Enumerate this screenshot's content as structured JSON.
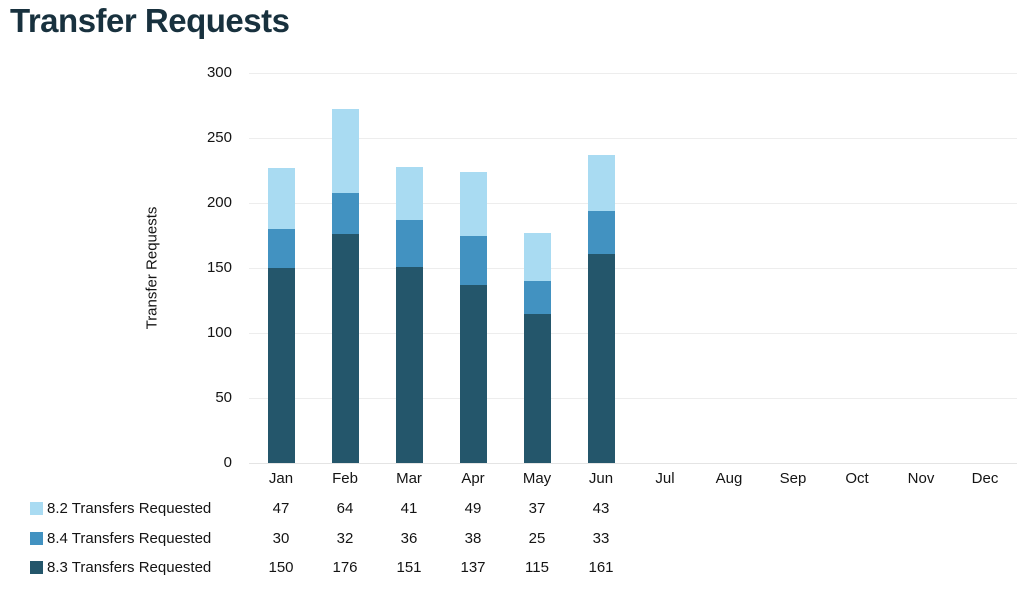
{
  "chart_data": {
    "type": "bar",
    "stacked": true,
    "title": "Transfer Requests",
    "ylabel": "Transfer Requests",
    "categories": [
      "Jan",
      "Feb",
      "Mar",
      "Apr",
      "May",
      "Jun",
      "Jul",
      "Aug",
      "Sep",
      "Oct",
      "Nov",
      "Dec"
    ],
    "ylim": [
      0,
      300
    ],
    "ytick_step": 50,
    "ytick_labels": [
      "0",
      "50",
      "100",
      "150",
      "200",
      "250",
      "300"
    ],
    "grid": true,
    "legend_position": "bottom-left",
    "series": [
      {
        "name": "8.2 Transfers Requested",
        "color": "#a9dbf2",
        "values": [
          47,
          64,
          41,
          49,
          37,
          43
        ]
      },
      {
        "name": "8.4 Transfers Requested",
        "color": "#4292c1",
        "values": [
          30,
          32,
          36,
          38,
          25,
          33
        ]
      },
      {
        "name": "8.3 Transfers Requested",
        "color": "#24566b",
        "values": [
          150,
          176,
          151,
          137,
          115,
          161
        ]
      }
    ],
    "stack_order_bottom_to_top": [
      2,
      1,
      0
    ],
    "stack_totals_jan_to_jun": [
      227,
      272,
      228,
      224,
      177,
      237
    ]
  },
  "colors": {
    "title_text": "#18313e",
    "axis_text": "#141414",
    "gridline": "#ededed"
  }
}
